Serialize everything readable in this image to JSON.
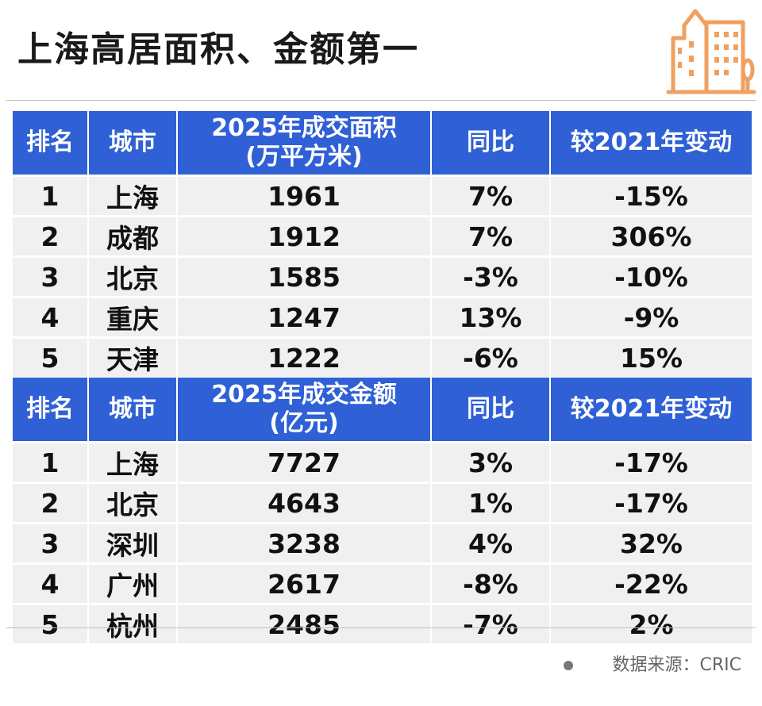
{
  "title": "上海高居面积、金额第一",
  "logo_icon": "buildings-icon",
  "colors": {
    "header_bg": "#2f60d6",
    "row_bg": "#f0f0f0",
    "logo": "#f0a060"
  },
  "chart_data": [
    {
      "type": "table",
      "columns": [
        "排名",
        "城市",
        "2025年成交面积 (万平方米)",
        "同比",
        "较2021年变动"
      ],
      "header_lines": {
        "col3_line1": "2025年成交面积",
        "col3_line2": "(万平方米)"
      },
      "rows": [
        [
          "1",
          "上海",
          "1961",
          "7%",
          "-15%"
        ],
        [
          "2",
          "成都",
          "1912",
          "7%",
          "306%"
        ],
        [
          "3",
          "北京",
          "1585",
          "-3%",
          "-10%"
        ],
        [
          "4",
          "重庆",
          "1247",
          "13%",
          "-9%"
        ],
        [
          "5",
          "天津",
          "1222",
          "-6%",
          "15%"
        ]
      ]
    },
    {
      "type": "table",
      "columns": [
        "排名",
        "城市",
        "2025年成交金额 (亿元)",
        "同比",
        "较2021年变动"
      ],
      "header_lines": {
        "col3_line1": "2025年成交金额",
        "col3_line2": "(亿元)"
      },
      "rows": [
        [
          "1",
          "上海",
          "7727",
          "3%",
          "-17%"
        ],
        [
          "2",
          "北京",
          "4643",
          "1%",
          "-17%"
        ],
        [
          "3",
          "深圳",
          "3238",
          "4%",
          "32%"
        ],
        [
          "4",
          "广州",
          "2617",
          "-8%",
          "-22%"
        ],
        [
          "5",
          "杭州",
          "2485",
          "-7%",
          "2%"
        ]
      ]
    }
  ],
  "footer": {
    "source": "数据来源：CRIC"
  }
}
